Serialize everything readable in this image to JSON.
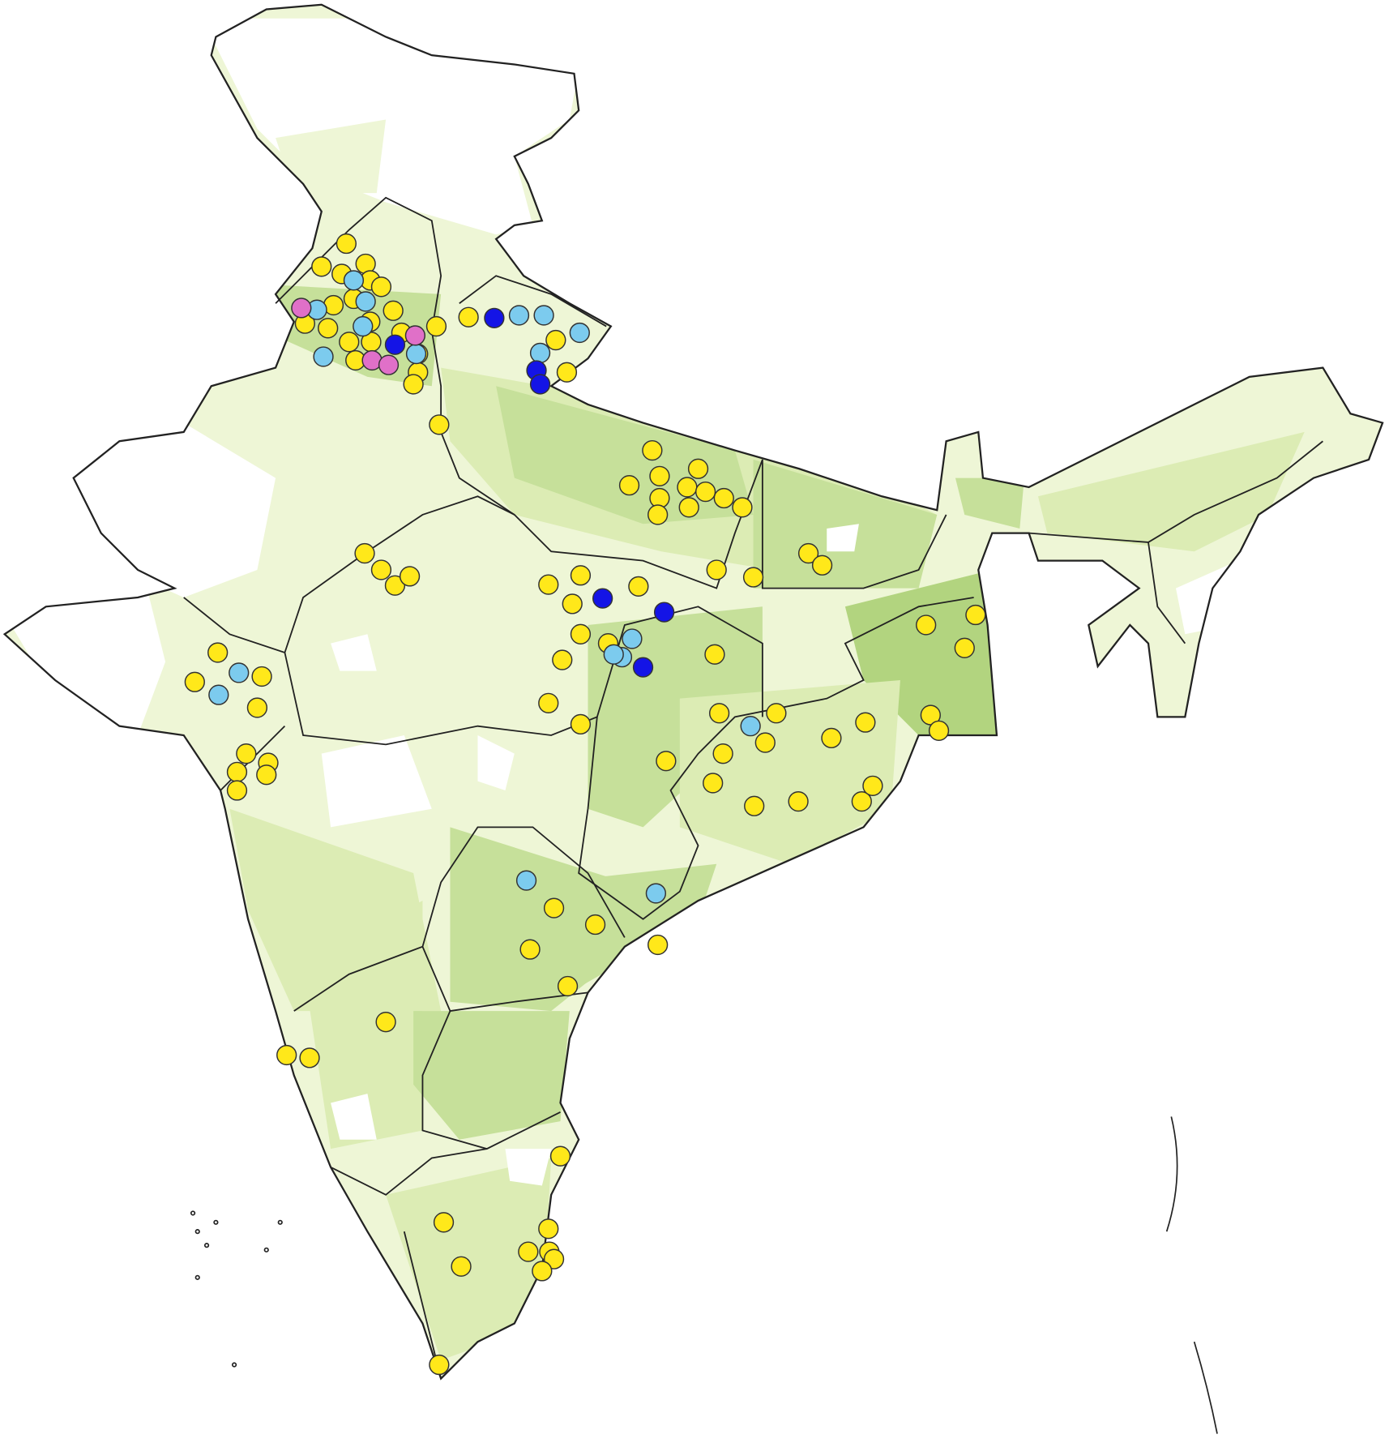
{
  "map": {
    "region": "India",
    "base_fill_colors": [
      "#eef6d6",
      "#dcecb4",
      "#c6e09a",
      "#b2d47f"
    ],
    "no_data_color": "#ffffff",
    "border_color": "#222222",
    "marker_categories": [
      {
        "key": "y",
        "color": "#ffe81a"
      },
      {
        "key": "l",
        "color": "#7ccbee"
      },
      {
        "key": "b",
        "color": "#1414e6"
      },
      {
        "key": "p",
        "color": "#e070c8"
      }
    ]
  }
}
